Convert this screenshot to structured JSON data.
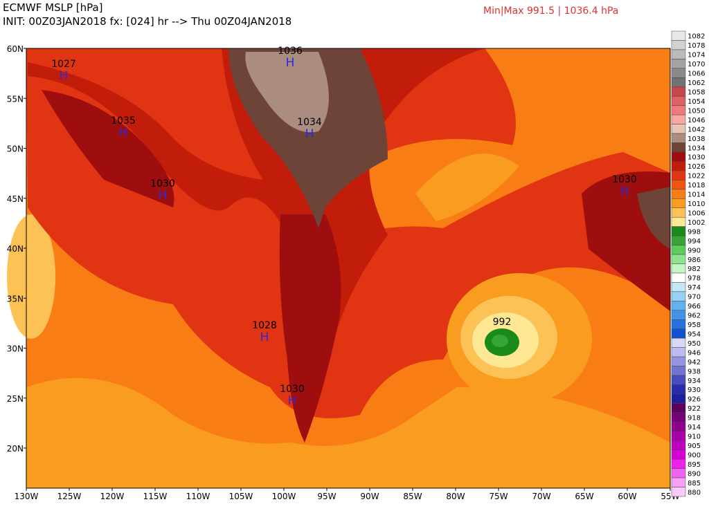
{
  "header": {
    "title": "ECMWF MSLP [hPa]",
    "init": "INIT: 00Z03JAN2018 fx: [024] hr --> Thu 00Z04JAN2018",
    "minmax": "Min|Max 991.5 | 1036.4 hPa"
  },
  "map": {
    "lat_labels": [
      "60N",
      "55N",
      "50N",
      "45N",
      "40N",
      "35N",
      "30N",
      "25N",
      "20N"
    ],
    "lon_labels": [
      "130W",
      "125W",
      "120W",
      "115W",
      "110W",
      "105W",
      "100W",
      "95W",
      "90W",
      "85W",
      "80W",
      "75W",
      "70W",
      "65W",
      "60W",
      "55W"
    ],
    "centers": [
      {
        "symbol": "H",
        "value": "1027"
      },
      {
        "symbol": "H",
        "value": "1035"
      },
      {
        "symbol": "H",
        "value": "1030"
      },
      {
        "symbol": "H",
        "value": "1036"
      },
      {
        "symbol": "H",
        "value": "1034"
      },
      {
        "symbol": "H",
        "value": "1028"
      },
      {
        "symbol": "H",
        "value": "1030"
      },
      {
        "symbol": "H",
        "value": "1030"
      }
    ],
    "low_label": "992"
  },
  "colorbar": {
    "levels": [
      {
        "label": "1082",
        "color": "#e8e8e8"
      },
      {
        "label": "1078",
        "color": "#d2d2d2"
      },
      {
        "label": "1074",
        "color": "#bbbbbb"
      },
      {
        "label": "1070",
        "color": "#a3a3a3"
      },
      {
        "label": "1066",
        "color": "#8a8a8a"
      },
      {
        "label": "1062",
        "color": "#727272"
      },
      {
        "label": "1058",
        "color": "#c44848"
      },
      {
        "label": "1054",
        "color": "#de6262"
      },
      {
        "label": "1050",
        "color": "#f07a7a"
      },
      {
        "label": "1046",
        "color": "#f8a8a0"
      },
      {
        "label": "1042",
        "color": "#e8c4b8"
      },
      {
        "label": "1038",
        "color": "#ab8c80"
      },
      {
        "label": "1034",
        "color": "#6e4438"
      },
      {
        "label": "1030",
        "color": "#9e0e0e"
      },
      {
        "label": "1026",
        "color": "#c21c0a"
      },
      {
        "label": "1022",
        "color": "#e03412"
      },
      {
        "label": "1018",
        "color": "#f05512"
      },
      {
        "label": "1014",
        "color": "#f87d14"
      },
      {
        "label": "1010",
        "color": "#fa9c20"
      },
      {
        "label": "1006",
        "color": "#fdc255"
      },
      {
        "label": "1002",
        "color": "#ffe894"
      },
      {
        "label": "998",
        "color": "#1a8a1a"
      },
      {
        "label": "994",
        "color": "#36a436"
      },
      {
        "label": "990",
        "color": "#5ccc5c"
      },
      {
        "label": "986",
        "color": "#8ee48e"
      },
      {
        "label": "982",
        "color": "#c4f6c4"
      },
      {
        "label": "978",
        "color": "#ffffff"
      },
      {
        "label": "974",
        "color": "#c4e8f8"
      },
      {
        "label": "970",
        "color": "#96d2f2"
      },
      {
        "label": "966",
        "color": "#62b2f0"
      },
      {
        "label": "962",
        "color": "#4292e8"
      },
      {
        "label": "958",
        "color": "#2472e0"
      },
      {
        "label": "954",
        "color": "#1252d0"
      },
      {
        "label": "950",
        "color": "#d8d8f8"
      },
      {
        "label": "946",
        "color": "#bcbcf0"
      },
      {
        "label": "942",
        "color": "#9494e0"
      },
      {
        "label": "938",
        "color": "#7272d0"
      },
      {
        "label": "934",
        "color": "#4a4ac0"
      },
      {
        "label": "930",
        "color": "#2a2ab0"
      },
      {
        "label": "926",
        "color": "#1e1ea0"
      },
      {
        "label": "922",
        "color": "#5c005c"
      },
      {
        "label": "918",
        "color": "#760076"
      },
      {
        "label": "914",
        "color": "#8e008e"
      },
      {
        "label": "910",
        "color": "#a600a6"
      },
      {
        "label": "905",
        "color": "#c000c0"
      },
      {
        "label": "900",
        "color": "#d800d8"
      },
      {
        "label": "895",
        "color": "#ee22ee"
      },
      {
        "label": "890",
        "color": "#f262f2"
      },
      {
        "label": "885",
        "color": "#f6a0f6"
      },
      {
        "label": "880",
        "color": "#fac8fa"
      }
    ]
  }
}
